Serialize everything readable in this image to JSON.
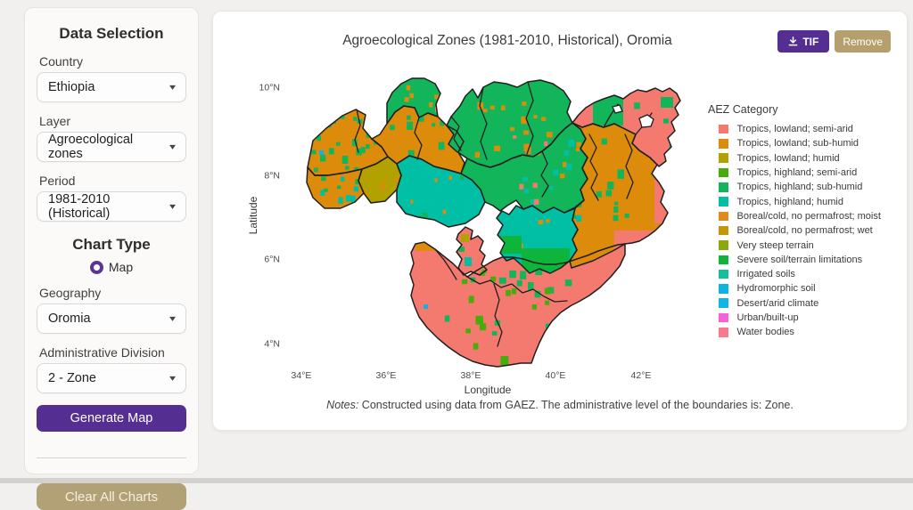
{
  "sidebar": {
    "title": "Data Selection",
    "country_label": "Country",
    "country_value": "Ethiopia",
    "layer_label": "Layer",
    "layer_value": "Agroecological zones",
    "period_label": "Period",
    "period_value": "1981-2010 (Historical)",
    "chart_type_label": "Chart Type",
    "chart_type_option": "Map",
    "chart_type_selected": true,
    "geography_label": "Geography",
    "geography_value": "Oromia",
    "admin_label": "Administrative Division",
    "admin_value": "2 - Zone",
    "generate_button": "Generate Map",
    "clear_button": "Clear All Charts"
  },
  "map_card": {
    "title": "Agroecological Zones (1981-2010, Historical), Oromia",
    "tif_button": "TIF",
    "remove_button": "Remove",
    "notes_prefix": "Notes:",
    "notes_text": " Constructed using data from GAEZ. The administrative level of the boundaries is: Zone."
  },
  "colors": {
    "accent_purple": "#552e92",
    "tan_button": "#b5a06d",
    "page_bg": "#f2f0ee",
    "boundary_black": "#1f1f1f"
  },
  "chart_data": {
    "type": "map",
    "subtype": "raster-choropleth of agroecological zone categories with zone-level administrative boundaries",
    "title": "Agroecological Zones (1981-2010, Historical), Oromia",
    "region": "Oromia",
    "xlabel": "Longitude",
    "ylabel": "Latitude",
    "x_ticks": [
      "34°E",
      "36°E",
      "38°E",
      "40°E",
      "42°E"
    ],
    "y_ticks": [
      "10°N",
      "8°N",
      "6°N",
      "4°N"
    ],
    "extent": {
      "lon_range": [
        "34°E",
        "43°E"
      ],
      "lat_range": [
        "3.5°N",
        "10.3°N"
      ]
    },
    "legend_title": "AEZ Category",
    "legend_position": "right",
    "legend": [
      {
        "label": "Tropics, lowland; semi-arid",
        "color": "#F4796F"
      },
      {
        "label": "Tropics, lowland; sub-humid",
        "color": "#DD8B0B"
      },
      {
        "label": "Tropics, lowland; humid",
        "color": "#B3A100"
      },
      {
        "label": "Tropics, highland; semi-arid",
        "color": "#47AD0B"
      },
      {
        "label": "Tropics, highland; sub-humid",
        "color": "#12B559"
      },
      {
        "label": "Tropics, highland; humid",
        "color": "#00BFA5"
      },
      {
        "label": "Boreal/cold, no permafrost; moist",
        "color": "#E08A1E"
      },
      {
        "label": "Boreal/cold, no permafrost; wet",
        "color": "#C39708"
      },
      {
        "label": "Very steep terrain",
        "color": "#8CA80B"
      },
      {
        "label": "Severe soil/terrain limitations",
        "color": "#0DB53A"
      },
      {
        "label": "Irrigated soils",
        "color": "#13BF9C"
      },
      {
        "label": "Hydromorphic soil",
        "color": "#0FB3E2"
      },
      {
        "label": "Desert/arid climate",
        "color": "#0EB7E8"
      },
      {
        "label": "Urban/built-up",
        "color": "#F861D9"
      },
      {
        "label": "Water bodies",
        "color": "#F9798E"
      }
    ],
    "dominant_pattern": [
      "northwest lobe: Tropics lowland sub-humid (orange) with sub-humid highland (green) speckles",
      "north-central lobes: Tropics highland sub-humid (green) with orange speckles",
      "southwest (Jimma) and center: Tropics highland humid (teal)",
      "northeast arm: Tropics lowland semi-arid (salmon) with green patches",
      "east: Tropics lowland sub-humid (orange) with salmon eastern fringe",
      "south lobe: Tropics lowland semi-arid (salmon) with highland semi-arid (grass-green) band"
    ],
    "notes": "Notes: Constructed using data from GAEZ. The administrative level of the boundaries is: Zone."
  }
}
